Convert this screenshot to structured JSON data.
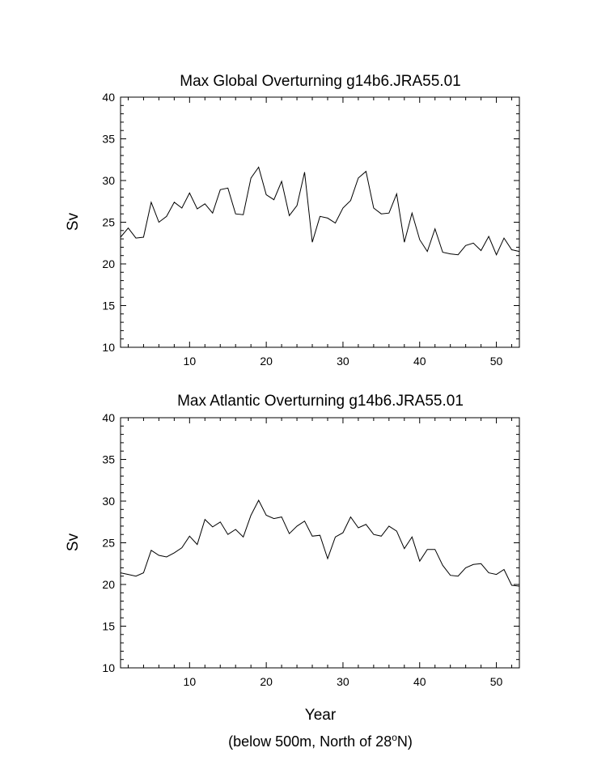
{
  "chart_data": [
    {
      "type": "line",
      "title": "Max Global Overturning g14b6.JRA55.01",
      "xlabel": "",
      "ylabel": "Sv",
      "xlim": [
        1,
        53
      ],
      "ylim": [
        10,
        40
      ],
      "xticks": [
        10,
        20,
        30,
        40,
        50
      ],
      "yticks": [
        10,
        15,
        20,
        25,
        30,
        35,
        40
      ],
      "grid": false,
      "x": [
        1,
        2,
        3,
        4,
        5,
        6,
        7,
        8,
        9,
        10,
        11,
        12,
        13,
        14,
        15,
        16,
        17,
        18,
        19,
        20,
        21,
        22,
        23,
        24,
        25,
        26,
        27,
        28,
        29,
        30,
        31,
        32,
        33,
        34,
        35,
        36,
        37,
        38,
        39,
        40,
        41,
        42,
        43,
        44,
        45,
        46,
        47,
        48,
        49,
        50,
        51,
        52,
        53
      ],
      "series": [
        {
          "values": [
            23.2,
            24.3,
            23.1,
            23.2,
            27.4,
            25.0,
            25.7,
            27.4,
            26.7,
            28.5,
            26.6,
            27.2,
            26.1,
            28.9,
            29.1,
            26.0,
            25.9,
            30.3,
            31.6,
            28.3,
            27.7,
            29.9,
            25.8,
            27.0,
            31.0,
            22.6,
            25.7,
            25.5,
            24.9,
            26.7,
            27.6,
            30.3,
            31.1,
            26.7,
            26.0,
            26.1,
            28.4,
            22.6,
            26.1,
            22.9,
            21.5,
            24.2,
            21.4,
            21.2,
            21.1,
            22.2,
            22.5,
            21.6,
            23.3,
            21.1,
            23.1,
            21.7,
            21.5
          ]
        }
      ]
    },
    {
      "type": "line",
      "title": "Max Atlantic Overturning g14b6.JRA55.01",
      "xlabel": "Year",
      "ylabel": "Sv",
      "xlim": [
        1,
        53
      ],
      "ylim": [
        10,
        40
      ],
      "xticks": [
        10,
        20,
        30,
        40,
        50
      ],
      "yticks": [
        10,
        15,
        20,
        25,
        30,
        35,
        40
      ],
      "grid": false,
      "x": [
        1,
        2,
        3,
        4,
        5,
        6,
        7,
        8,
        9,
        10,
        11,
        12,
        13,
        14,
        15,
        16,
        17,
        18,
        19,
        20,
        21,
        22,
        23,
        24,
        25,
        26,
        27,
        28,
        29,
        30,
        31,
        32,
        33,
        34,
        35,
        36,
        37,
        38,
        39,
        40,
        41,
        42,
        43,
        44,
        45,
        46,
        47,
        48,
        49,
        50,
        51,
        52,
        53
      ],
      "series": [
        {
          "values": [
            21.4,
            21.2,
            21.0,
            21.4,
            24.1,
            23.5,
            23.3,
            23.8,
            24.4,
            25.8,
            24.8,
            27.8,
            26.9,
            27.5,
            26.0,
            26.6,
            25.7,
            28.3,
            30.1,
            28.3,
            27.9,
            28.1,
            26.1,
            27.0,
            27.6,
            25.8,
            25.9,
            23.1,
            25.7,
            26.2,
            28.1,
            26.8,
            27.2,
            26.0,
            25.8,
            27.0,
            26.4,
            24.3,
            25.7,
            22.8,
            24.2,
            24.2,
            22.3,
            21.1,
            21.0,
            22.0,
            22.4,
            22.5,
            21.4,
            21.2,
            21.8,
            19.9,
            19.8
          ]
        }
      ]
    }
  ],
  "footnote": {
    "prefix": "(below 500m, North of 28",
    "superscript": "o",
    "suffix": "N)"
  }
}
